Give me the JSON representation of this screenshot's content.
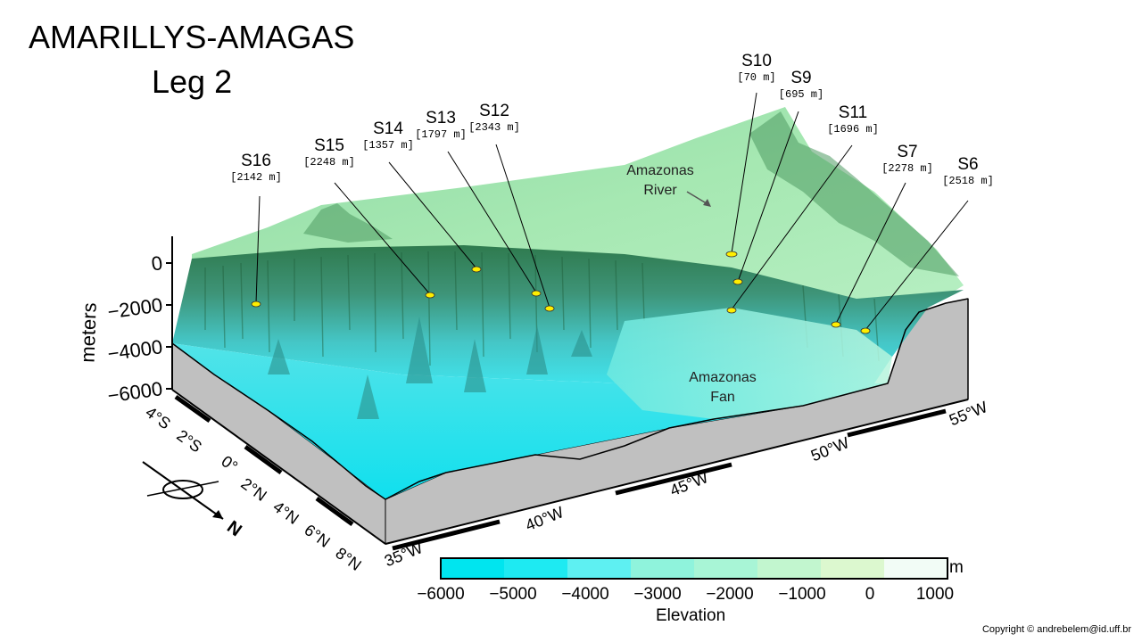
{
  "title_line1": "AMARILLYS-AMAGAS",
  "title_line2": "Leg 2",
  "stations": [
    {
      "name": "S16",
      "depth": "[2142 m]"
    },
    {
      "name": "S15",
      "depth": "[2248 m]"
    },
    {
      "name": "S14",
      "depth": "[1357 m]"
    },
    {
      "name": "S13",
      "depth": "[1797 m]"
    },
    {
      "name": "S12",
      "depth": "[2343 m]"
    },
    {
      "name": "S10",
      "depth": "[70 m]"
    },
    {
      "name": "S9",
      "depth": "[695 m]"
    },
    {
      "name": "S11",
      "depth": "[1696 m]"
    },
    {
      "name": "S7",
      "depth": "[2278 m]"
    },
    {
      "name": "S6",
      "depth": "[2518 m]"
    }
  ],
  "annotations": {
    "river": "Amazonas River",
    "fan": "Amazonas Fan"
  },
  "z_axis": {
    "label": "meters",
    "ticks": [
      "0",
      "−2000",
      "−4000",
      "−6000"
    ]
  },
  "lat_ticks": [
    "4°S",
    "2°S",
    "0°",
    "2°N",
    "4°N",
    "6°N",
    "8°N"
  ],
  "lon_ticks": [
    "35°W",
    "40°W",
    "45°W",
    "50°W",
    "55°W"
  ],
  "compass": {
    "label": "N"
  },
  "colorbar": {
    "label": "Elevation",
    "unit": "m",
    "ticks": [
      "−6000",
      "−5000",
      "−4000",
      "−3000",
      "−2000",
      "−1000",
      "0",
      "1000"
    ],
    "colors": [
      "#00e5ef",
      "#1eeaf2",
      "#5ef0f2",
      "#8ff3dc",
      "#a8f5d6",
      "#c2f6cf",
      "#dcf8cf",
      "#f2fcf6"
    ]
  },
  "copyright": "Copyright © andrebelem@id.uff.br"
}
